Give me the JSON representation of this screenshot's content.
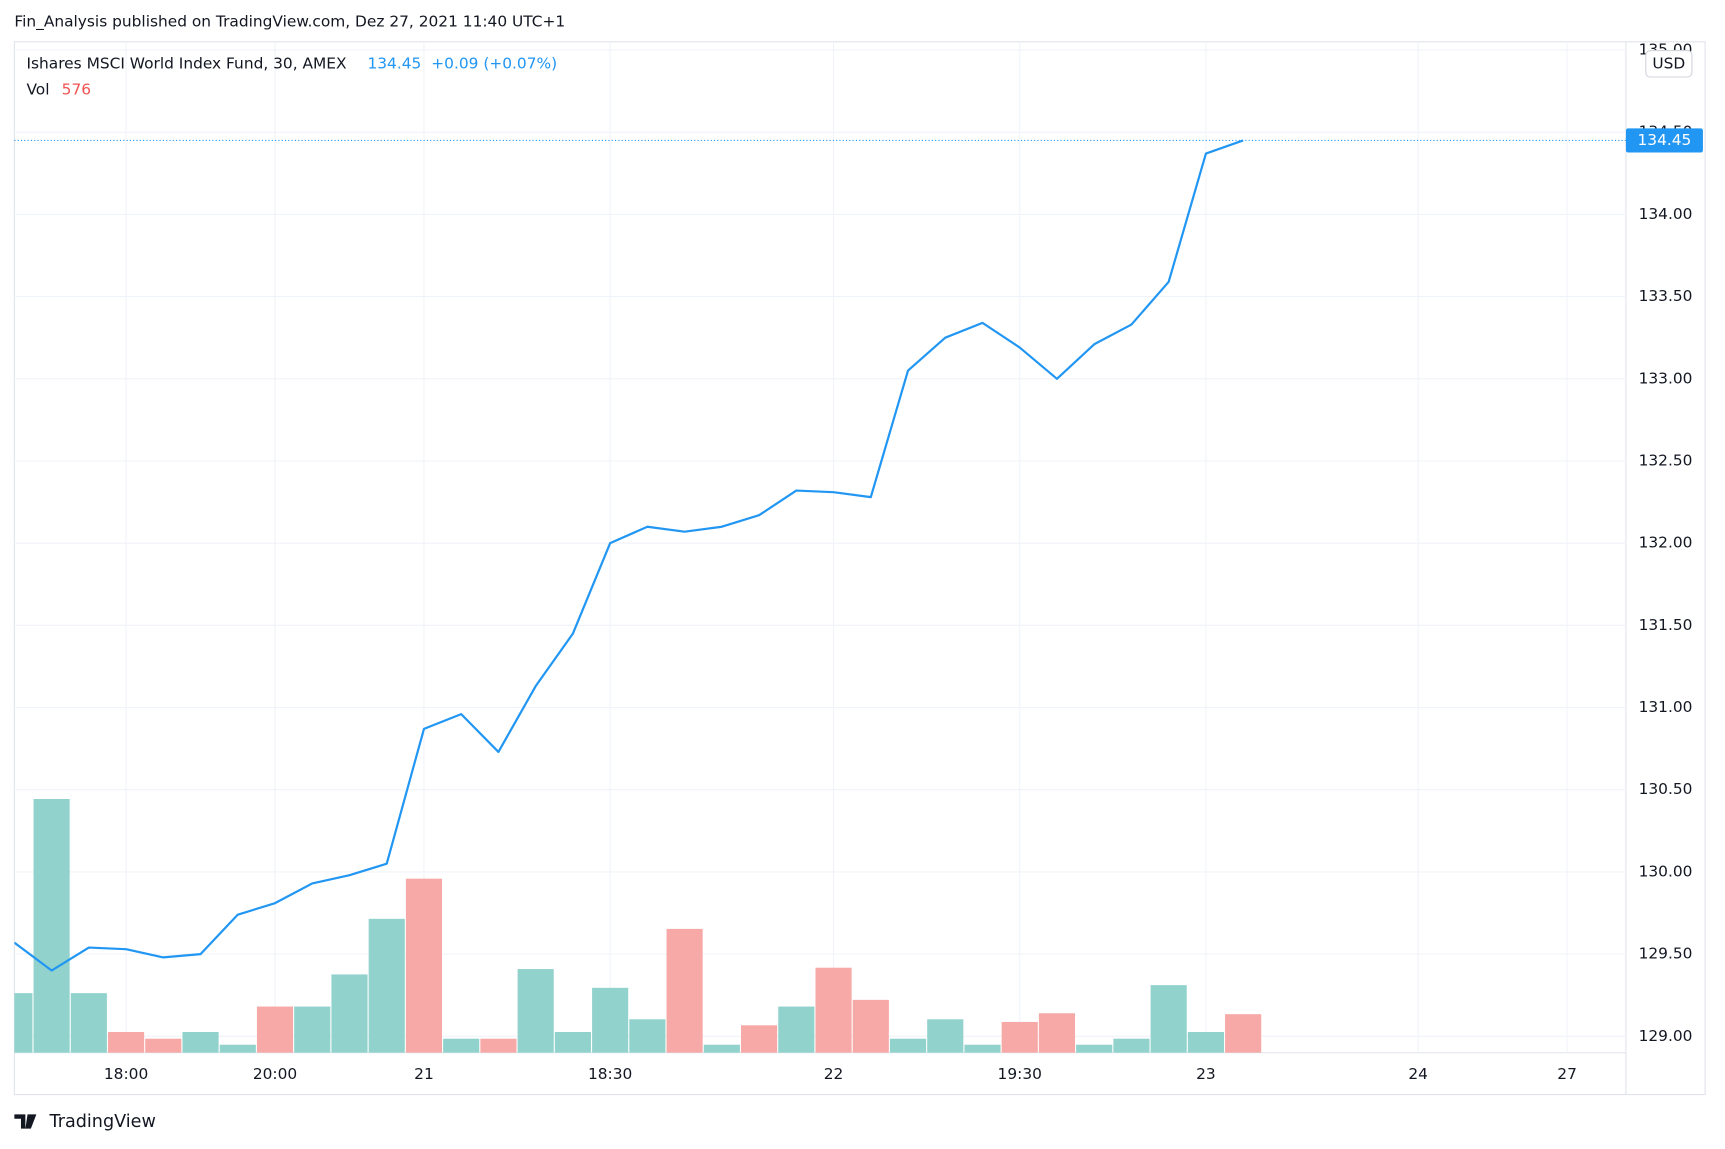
{
  "chart_data": {
    "type": "line",
    "header": "Fin_Analysis published on TradingView.com, Dez 27, 2021 11:40 UTC+1",
    "title": "Ishares MSCI World Index Fund, 30, AMEX",
    "change": "+0.09 (+0.07%)",
    "volume_label": "Vol",
    "currency": "USD",
    "footer": "TradingView",
    "x": [
      0,
      1,
      2,
      3,
      4,
      5,
      6,
      7,
      8,
      9,
      10,
      11,
      12,
      13,
      14,
      15,
      16,
      17,
      18,
      19,
      20,
      21,
      22,
      23,
      24,
      25,
      26,
      27,
      28,
      29,
      30,
      31,
      32,
      33
    ],
    "series": [
      {
        "name": "Price",
        "color": "#2196f3",
        "values": [
          129.57,
          129.4,
          129.54,
          129.53,
          129.48,
          129.5,
          129.74,
          129.81,
          129.93,
          129.98,
          130.05,
          130.87,
          130.96,
          130.73,
          131.13,
          131.45,
          132.0,
          132.1,
          132.07,
          132.1,
          132.17,
          132.32,
          132.31,
          132.28,
          133.05,
          133.25,
          133.34,
          133.19,
          133.0,
          133.21,
          133.33,
          133.59,
          134.37,
          134.45
        ]
      },
      {
        "name": "Vol",
        "axis": "y2",
        "values": [
          890,
          3790,
          890,
          310,
          210,
          310,
          120,
          690,
          690,
          1170,
          2000,
          2600,
          210,
          210,
          1250,
          310,
          970,
          500,
          1850,
          120,
          410,
          690,
          1270,
          790,
          210,
          500,
          120,
          460,
          590,
          120,
          210,
          1010,
          310,
          576
        ],
        "colors": [
          "#92d2cc",
          "#92d2cc",
          "#92d2cc",
          "#f7a9a7",
          "#f7a9a7",
          "#92d2cc",
          "#92d2cc",
          "#f7a9a7",
          "#92d2cc",
          "#92d2cc",
          "#92d2cc",
          "#f7a9a7",
          "#92d2cc",
          "#f7a9a7",
          "#92d2cc",
          "#92d2cc",
          "#92d2cc",
          "#92d2cc",
          "#f7a9a7",
          "#92d2cc",
          "#f7a9a7",
          "#92d2cc",
          "#f7a9a7",
          "#f7a9a7",
          "#92d2cc",
          "#92d2cc",
          "#92d2cc",
          "#f7a9a7",
          "#f7a9a7",
          "#92d2cc",
          "#92d2cc",
          "#92d2cc",
          "#92d2cc",
          "#f7a9a7"
        ]
      }
    ],
    "xlim": [
      0,
      43.28
    ],
    "xticks": [
      {
        "value": 3,
        "label": "18:00"
      },
      {
        "value": 7,
        "label": "20:00"
      },
      {
        "value": 11,
        "label": "21"
      },
      {
        "value": 16,
        "label": "18:30"
      },
      {
        "value": 22,
        "label": "22"
      },
      {
        "value": 27,
        "label": "19:30"
      },
      {
        "value": 32,
        "label": "23"
      },
      {
        "value": 37.7,
        "label": "24"
      },
      {
        "value": 41.7,
        "label": "27"
      }
    ],
    "ylim": [
      128.9,
      135.05
    ],
    "yticks": [
      {
        "value": 129,
        "label": "129.00"
      },
      {
        "value": 129.5,
        "label": "129.50"
      },
      {
        "value": 130,
        "label": "130.00"
      },
      {
        "value": 130.5,
        "label": "130.50"
      },
      {
        "value": 131,
        "label": "131.00"
      },
      {
        "value": 131.5,
        "label": "131.50"
      },
      {
        "value": 132,
        "label": "132.00"
      },
      {
        "value": 132.5,
        "label": "132.50"
      },
      {
        "value": 133,
        "label": "133.00"
      },
      {
        "value": 133.5,
        "label": "133.50"
      },
      {
        "value": 134,
        "label": "134.00"
      },
      {
        "value": 134.5,
        "label": "134.50"
      },
      {
        "value": 135,
        "label": "135.00"
      }
    ],
    "y2lim": [
      0,
      15100
    ],
    "grid": true
  }
}
